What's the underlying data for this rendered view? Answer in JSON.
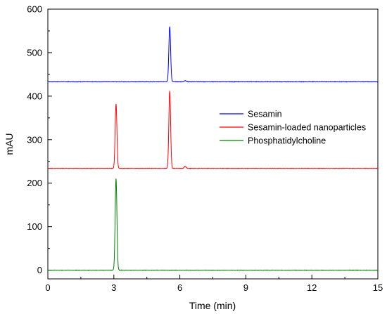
{
  "chart_data": {
    "type": "line",
    "title": "",
    "xlabel": "Time (min)",
    "ylabel": "mAU",
    "xlim": [
      0,
      15
    ],
    "ylim": [
      -20,
      600
    ],
    "x_ticks": [
      0,
      3,
      6,
      9,
      12,
      15
    ],
    "y_ticks": [
      0,
      100,
      200,
      300,
      400,
      500,
      600
    ],
    "grid": false,
    "legend_position": "right",
    "series": [
      {
        "name": "Sesamin",
        "color": "#0000ff",
        "baseline": 433,
        "peaks": [
          {
            "time": 5.54,
            "height": 560
          },
          {
            "time": 6.24,
            "height": 436
          }
        ]
      },
      {
        "name": "Sesamin-loaded nanoparticles",
        "color": "#ff0000",
        "baseline": 234,
        "peaks": [
          {
            "time": 3.1,
            "height": 382
          },
          {
            "time": 5.54,
            "height": 412
          },
          {
            "time": 6.24,
            "height": 239
          }
        ]
      },
      {
        "name": "Phosphatidylcholine",
        "color": "#008000",
        "baseline": 0,
        "peaks": [
          {
            "time": 3.1,
            "height": 210
          }
        ]
      }
    ]
  }
}
